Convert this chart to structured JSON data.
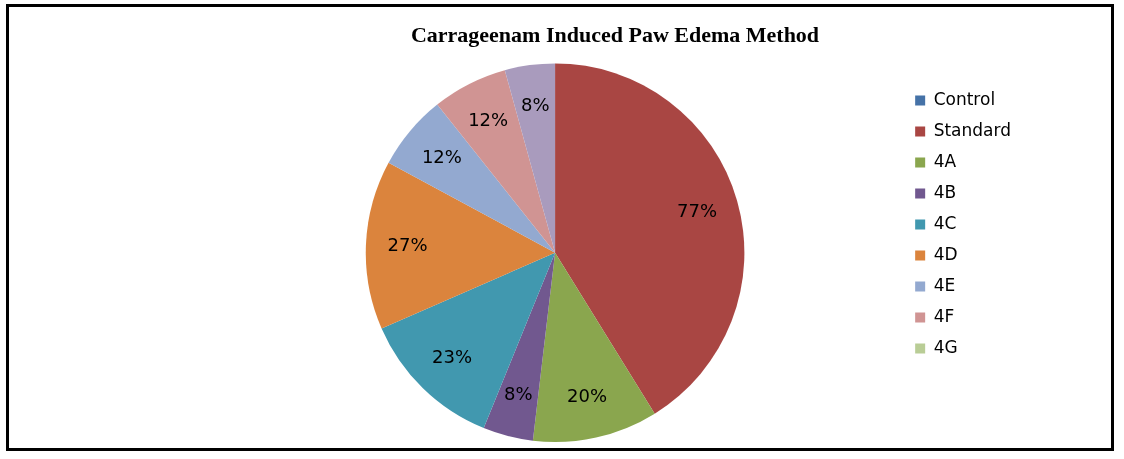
{
  "chart_data": {
    "type": "pie",
    "title": "Carrageenam Induced Paw Edema Method",
    "categories": [
      "Control",
      "Standard",
      "4A",
      "4B",
      "4C",
      "4D",
      "4E",
      "4F",
      "4G",
      null
    ],
    "values": [
      0,
      77,
      20,
      8,
      23,
      27,
      12,
      12,
      0,
      8
    ],
    "value_labels": [
      null,
      "77%",
      "20%",
      "8%",
      "23%",
      "27%",
      "12%",
      "12%",
      null,
      "8%"
    ],
    "colors": [
      "#4572a7",
      "#a94643",
      "#8aa64e",
      "#71588f",
      "#4198af",
      "#db843d",
      "#93a9d0",
      "#d09493",
      "#b9cd96",
      "#a99bbd"
    ],
    "legend": "right"
  }
}
